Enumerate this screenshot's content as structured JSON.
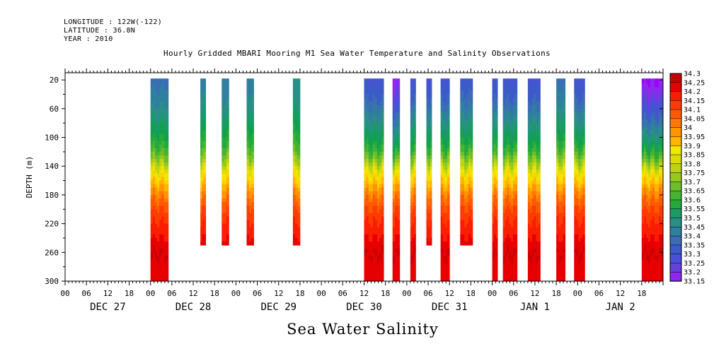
{
  "header": {
    "longitude": "LONGITUDE : 122W(-122)",
    "latitude": "LATITUDE : 36.8N",
    "year": "YEAR : 2010",
    "title": "Hourly Gridded MBARI Mooring M1 Sea Water Temperature and Salinity Observations"
  },
  "footer": {
    "title": "Sea Water Salinity"
  },
  "colors": {
    "scale": [
      "#a000ff",
      "#8c28f0",
      "#6440dc",
      "#4a50d8",
      "#3c5ac8",
      "#3a6eb4",
      "#2f7f9f",
      "#2a8f86",
      "#1a9a6a",
      "#12a050",
      "#24aa3c",
      "#46b432",
      "#6ebe28",
      "#96c81e",
      "#bed214",
      "#dcdc0a",
      "#f0e600",
      "#ffd200",
      "#ffb400",
      "#ff9600",
      "#ff7800",
      "#ff5a00",
      "#ff3c00",
      "#fa1e00",
      "#e60000",
      "#c80000",
      "#a00000"
    ]
  },
  "chart_data": {
    "type": "heatmap",
    "title": "Hourly Gridded MBARI Mooring M1 Sea Water Temperature and Salinity Observations",
    "xlabel": "",
    "ylabel": "DEPTH (m)",
    "x_axis": {
      "range_hours": [
        0,
        168
      ],
      "hour_ticks": [
        "00",
        "06",
        "12",
        "18",
        "00",
        "06",
        "12",
        "18",
        "00",
        "06",
        "12",
        "18",
        "00",
        "06",
        "12",
        "18",
        "00",
        "06",
        "12",
        "18",
        "00",
        "06",
        "12",
        "18",
        "00",
        "06",
        "12",
        "18"
      ],
      "day_labels": [
        {
          "hour": 12,
          "label": "DEC 27"
        },
        {
          "hour": 36,
          "label": "DEC 28"
        },
        {
          "hour": 60,
          "label": "DEC 29"
        },
        {
          "hour": 84,
          "label": "DEC 30"
        },
        {
          "hour": 108,
          "label": "DEC 31"
        },
        {
          "hour": 132,
          "label": "JAN  1"
        },
        {
          "hour": 156,
          "label": "JAN  2"
        }
      ]
    },
    "y_axis": {
      "range": [
        10,
        300
      ],
      "inverted": true,
      "ticks": [
        20,
        60,
        100,
        140,
        180,
        220,
        260,
        300
      ]
    },
    "colorbar": {
      "levels": [
        "34.3",
        "34.25",
        "34.2",
        "34.15",
        "34.1",
        "34.05",
        "34",
        "33.95",
        "33.9",
        "33.85",
        "33.8",
        "33.75",
        "33.7",
        "33.65",
        "33.6",
        "33.55",
        "33.5",
        "33.45",
        "33.4",
        "33.35",
        "33.3",
        "33.25",
        "33.2",
        "33.15"
      ]
    },
    "depth_profile": {
      "depths": [
        20,
        45,
        70,
        95,
        115,
        135,
        150,
        165,
        185,
        205,
        225,
        245,
        262,
        280,
        300
      ],
      "salinity": [
        33.37,
        33.4,
        33.47,
        33.55,
        33.62,
        33.74,
        33.86,
        33.94,
        34.05,
        34.12,
        34.16,
        34.2,
        34.24,
        34.22,
        34.2
      ]
    },
    "data_columns": [
      {
        "start_hour": 24.0,
        "end_hour": 29.0,
        "max_depth": 300,
        "surface": 33.38
      },
      {
        "start_hour": 38.0,
        "end_hour": 39.5,
        "max_depth": 250,
        "surface": 33.42
      },
      {
        "start_hour": 44.0,
        "end_hour": 46.0,
        "max_depth": 250,
        "surface": 33.4
      },
      {
        "start_hour": 51.0,
        "end_hour": 53.0,
        "max_depth": 250,
        "surface": 33.42
      },
      {
        "start_hour": 64.0,
        "end_hour": 66.0,
        "max_depth": 250,
        "surface": 33.45
      },
      {
        "start_hour": 84.0,
        "end_hour": 89.5,
        "max_depth": 300,
        "surface": 33.3
      },
      {
        "start_hour": 92.0,
        "end_hour": 94.0,
        "max_depth": 300,
        "surface": 33.18
      },
      {
        "start_hour": 97.0,
        "end_hour": 98.5,
        "max_depth": 300,
        "surface": 33.3
      },
      {
        "start_hour": 101.5,
        "end_hour": 103.0,
        "max_depth": 250,
        "surface": 33.3
      },
      {
        "start_hour": 105.5,
        "end_hour": 108.0,
        "max_depth": 300,
        "surface": 33.3
      },
      {
        "start_hour": 111.0,
        "end_hour": 114.5,
        "max_depth": 250,
        "surface": 33.32
      },
      {
        "start_hour": 120.0,
        "end_hour": 121.5,
        "max_depth": 300,
        "surface": 33.3
      },
      {
        "start_hour": 123.0,
        "end_hour": 127.0,
        "max_depth": 300,
        "surface": 33.3
      },
      {
        "start_hour": 130.0,
        "end_hour": 133.5,
        "max_depth": 300,
        "surface": 33.3
      },
      {
        "start_hour": 138.0,
        "end_hour": 140.5,
        "max_depth": 300,
        "surface": 33.38
      },
      {
        "start_hour": 143.0,
        "end_hour": 146.0,
        "max_depth": 300,
        "surface": 33.3
      },
      {
        "start_hour": 162.0,
        "end_hour": 168.0,
        "max_depth": 300,
        "surface": 33.16
      }
    ]
  }
}
